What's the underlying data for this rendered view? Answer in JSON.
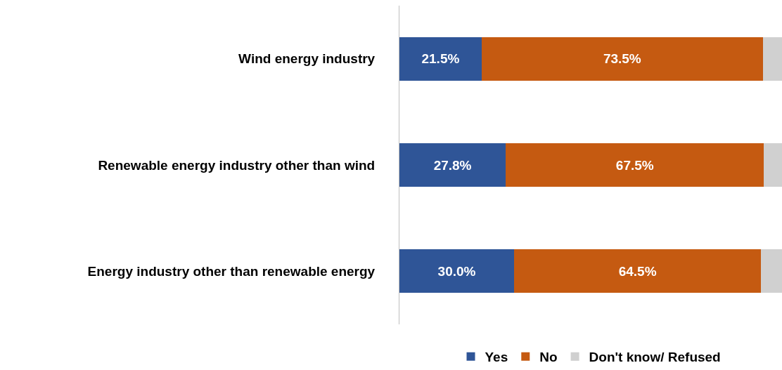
{
  "chart_data": {
    "type": "bar",
    "orientation": "horizontal",
    "stacked": true,
    "categories": [
      "Wind energy industry",
      "Renewable energy industry other than wind",
      "Energy industry other than renewable energy"
    ],
    "series": [
      {
        "name": "Yes",
        "color": "#2f5597",
        "values": [
          21.5,
          27.8,
          30.0
        ],
        "value_labels": [
          "21.5%",
          "27.8%",
          "30.0%"
        ]
      },
      {
        "name": "No",
        "color": "#c55a11",
        "values": [
          73.5,
          67.5,
          64.5
        ],
        "value_labels": [
          "73.5%",
          "67.5%",
          "64.5%"
        ]
      },
      {
        "name": "Don't know/ Refused",
        "color": "#d0d0d0",
        "values": [
          5.0,
          4.7,
          5.5
        ],
        "value_labels": [
          null,
          null,
          null
        ]
      }
    ],
    "xlim": [
      0,
      100
    ],
    "tick_labels": "y",
    "legend": "bottom"
  }
}
